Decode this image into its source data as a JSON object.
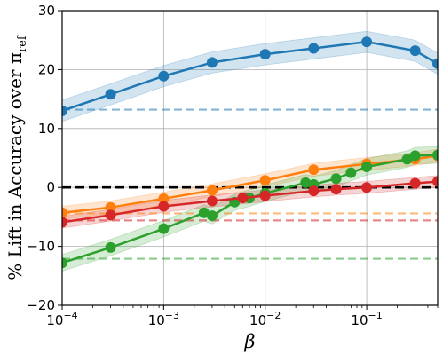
{
  "chart_data": {
    "type": "line",
    "xscale": "log",
    "xlim": [
      0.0001,
      0.5
    ],
    "ylim": [
      -20,
      30
    ],
    "grid": true,
    "xlabel": "β",
    "ylabel": "% Lift in Accuracy over π",
    "ylabel_sub": "ref",
    "x_ticks": [
      {
        "value": 0.0001,
        "base": "10",
        "exp": "−4"
      },
      {
        "value": 0.001,
        "base": "10",
        "exp": "−3"
      },
      {
        "value": 0.01,
        "base": "10",
        "exp": "−2"
      },
      {
        "value": 0.1,
        "base": "10",
        "exp": "−1"
      }
    ],
    "y_ticks": [
      {
        "value": -20,
        "label": "−20"
      },
      {
        "value": -10,
        "label": "−10"
      },
      {
        "value": 0,
        "label": "0"
      },
      {
        "value": 10,
        "label": "10"
      },
      {
        "value": 20,
        "label": "20"
      },
      {
        "value": 30,
        "label": "30"
      }
    ],
    "zero_line": {
      "y": 0,
      "color": "#000000"
    },
    "series": [
      {
        "color": "#1f77b4",
        "baseline": 13.2,
        "band": 1.8,
        "x": [
          0.0001,
          0.0003,
          0.001,
          0.003,
          0.01,
          0.03,
          0.1,
          0.3,
          0.5
        ],
        "y": [
          13.0,
          15.8,
          18.9,
          21.2,
          22.6,
          23.6,
          24.7,
          23.2,
          21.0
        ]
      },
      {
        "color": "#ff7f0e",
        "baseline": -4.4,
        "band": 1.1,
        "x": [
          0.0001,
          0.0003,
          0.001,
          0.003,
          0.01,
          0.03,
          0.1,
          0.3,
          0.5
        ],
        "y": [
          -4.3,
          -3.4,
          -1.9,
          -0.5,
          1.2,
          3.0,
          4.0,
          4.8,
          5.4
        ]
      },
      {
        "color": "#2ca02c",
        "baseline": -12.1,
        "band": 1.4,
        "x": [
          0.0001,
          0.0003,
          0.001,
          0.0025,
          0.003,
          0.005,
          0.007,
          0.01,
          0.025,
          0.03,
          0.05,
          0.07,
          0.1,
          0.25,
          0.3,
          0.5
        ],
        "y": [
          -12.8,
          -10.2,
          -7.0,
          -4.3,
          -4.8,
          -2.5,
          -1.8,
          -1.0,
          0.8,
          0.5,
          1.5,
          2.5,
          3.5,
          4.8,
          5.4,
          5.5
        ]
      },
      {
        "color": "#d62728",
        "baseline": -5.6,
        "band": 1.0,
        "x": [
          0.0001,
          0.0003,
          0.001,
          0.003,
          0.006,
          0.01,
          0.03,
          0.05,
          0.1,
          0.3,
          0.5
        ],
        "y": [
          -5.9,
          -4.7,
          -3.2,
          -2.3,
          -1.8,
          -1.4,
          -0.6,
          -0.3,
          0.0,
          0.7,
          1.0
        ]
      }
    ]
  }
}
